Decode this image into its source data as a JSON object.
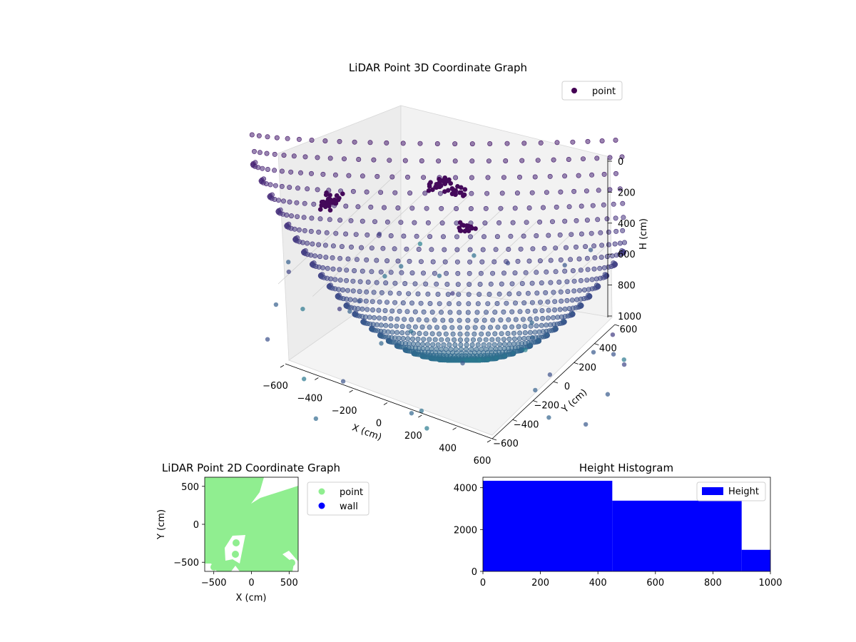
{
  "chart_data": [
    {
      "type": "scatter",
      "projection": "3d",
      "title": "LiDAR Point 3D Coordinate Graph",
      "xlabel": "X (cm)",
      "ylabel": "Y (cm)",
      "zlabel": "H (cm)",
      "xticks": [
        "−600",
        "−400",
        "−200",
        "0",
        "200",
        "400",
        "600"
      ],
      "yticks": [
        "−600",
        "−400",
        "−200",
        "0",
        "200",
        "400",
        "600"
      ],
      "zticks": [
        "0",
        "200",
        "400",
        "600",
        "800",
        "1000"
      ],
      "xlim": [
        -600,
        600
      ],
      "ylim": [
        -600,
        600
      ],
      "zlim": [
        1000,
        0
      ],
      "grid": true,
      "legend": {
        "position": "top-right",
        "entries": [
          {
            "label": "point",
            "color": "#440154"
          }
        ]
      },
      "colormap": "viridis (colored by height)",
      "series": [
        {
          "name": "point"
        }
      ]
    },
    {
      "type": "scatter",
      "title": "LiDAR Point 2D Coordinate Graph",
      "xlabel": "X (cm)",
      "ylabel": "Y (cm)",
      "xticks": [
        "−500",
        "0",
        "500"
      ],
      "yticks": [
        "500",
        "0",
        "−500"
      ],
      "xlim": [
        -620,
        620
      ],
      "ylim": [
        -620,
        620
      ],
      "legend": {
        "position": "outside-right",
        "entries": [
          {
            "label": "point",
            "color": "#90ee90"
          },
          {
            "label": "wall",
            "color": "#0000ff"
          }
        ]
      },
      "series": [
        {
          "name": "point"
        },
        {
          "name": "wall"
        }
      ]
    },
    {
      "type": "histogram",
      "title": "Height Histogram",
      "xlabel": "",
      "ylabel": "",
      "xticks": [
        "0",
        "200",
        "400",
        "600",
        "800",
        "1000"
      ],
      "yticks": [
        "0",
        "2000",
        "4000"
      ],
      "xlim": [
        0,
        1000
      ],
      "ylim": [
        0,
        4500
      ],
      "bars_color": "#0000ff",
      "bins": [
        {
          "x0": 0,
          "x1": 450,
          "count": 4330
        },
        {
          "x0": 450,
          "x1": 900,
          "count": 3380
        },
        {
          "x0": 900,
          "x1": 1000,
          "count": 1030
        }
      ],
      "legend": {
        "position": "top-right",
        "entries": [
          {
            "label": "Height",
            "color": "#0000ff"
          }
        ]
      }
    }
  ]
}
